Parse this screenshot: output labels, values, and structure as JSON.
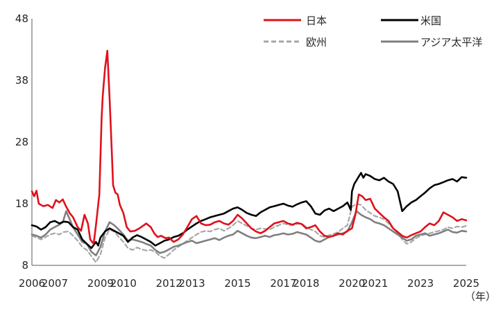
{
  "chart_data": {
    "type": "line",
    "title": "",
    "xlabel": "（年）",
    "ylabel": "",
    "ylim": [
      8,
      48
    ],
    "yticks": [
      8,
      18,
      28,
      38,
      48
    ],
    "xlim": [
      2006,
      2025
    ],
    "xticks": [
      2006,
      2007,
      2009,
      2010,
      2012,
      2013,
      2015,
      2017,
      2018,
      2020,
      2021,
      2023,
      2025
    ],
    "grid": false,
    "legend_position": "top-right",
    "series": [
      {
        "name": "日本",
        "color": "#e0101c",
        "dash": "solid",
        "x": [
          2006.0,
          2006.1,
          2006.2,
          2006.3,
          2006.5,
          2006.7,
          2006.9,
          2007.05,
          2007.2,
          2007.35,
          2007.5,
          2007.65,
          2007.8,
          2008.0,
          2008.15,
          2008.3,
          2008.45,
          2008.55,
          2008.7,
          2008.8,
          2008.9,
          2008.95,
          2009.05,
          2009.1,
          2009.2,
          2009.3,
          2009.4,
          2009.5,
          2009.55,
          2009.65,
          2009.75,
          2009.85,
          2010.0,
          2010.15,
          2010.3,
          2010.5,
          2010.7,
          2010.9,
          2011.0,
          2011.2,
          2011.35,
          2011.5,
          2011.65,
          2011.85,
          2012.0,
          2012.2,
          2012.4,
          2012.6,
          2012.8,
          2013.0,
          2013.2,
          2013.4,
          2013.6,
          2013.8,
          2014.0,
          2014.2,
          2014.4,
          2014.6,
          2014.8,
          2015.0,
          2015.2,
          2015.4,
          2015.6,
          2015.8,
          2016.0,
          2016.2,
          2016.4,
          2016.6,
          2016.8,
          2017.0,
          2017.2,
          2017.4,
          2017.6,
          2017.8,
          2018.0,
          2018.2,
          2018.4,
          2018.6,
          2018.8,
          2019.0,
          2019.2,
          2019.4,
          2019.6,
          2019.8,
          2020.0,
          2020.15,
          2020.3,
          2020.45,
          2020.6,
          2020.8,
          2021.0,
          2021.2,
          2021.4,
          2021.6,
          2021.8,
          2022.0,
          2022.2,
          2022.4,
          2022.6,
          2022.8,
          2023.0,
          2023.2,
          2023.4,
          2023.6,
          2023.8,
          2024.0,
          2024.2,
          2024.4,
          2024.6,
          2024.8,
          2025.0
        ],
        "values": [
          20.0,
          19.2,
          20.1,
          18.0,
          17.6,
          17.8,
          17.3,
          18.6,
          18.2,
          18.7,
          17.5,
          16.5,
          15.8,
          14.2,
          13.6,
          16.2,
          14.8,
          12.2,
          11.5,
          14.5,
          17.8,
          19.5,
          32.0,
          35.5,
          40.0,
          42.8,
          35.0,
          26.0,
          21.0,
          19.8,
          19.5,
          17.8,
          16.5,
          14.2,
          13.5,
          13.6,
          14.0,
          14.5,
          14.8,
          14.2,
          13.2,
          12.6,
          12.8,
          12.4,
          12.5,
          11.8,
          12.2,
          13.0,
          14.2,
          15.5,
          16.0,
          14.8,
          14.5,
          14.6,
          15.0,
          15.2,
          14.8,
          14.6,
          15.2,
          16.2,
          15.6,
          14.8,
          14.0,
          13.5,
          13.2,
          13.6,
          14.2,
          14.8,
          15.0,
          15.2,
          14.8,
          14.6,
          14.9,
          14.7,
          14.0,
          14.2,
          14.5,
          13.5,
          12.8,
          12.6,
          12.8,
          13.2,
          13.0,
          13.6,
          14.0,
          16.2,
          19.5,
          19.2,
          18.6,
          18.8,
          17.2,
          16.5,
          15.8,
          15.2,
          14.0,
          13.4,
          12.8,
          12.5,
          12.9,
          13.2,
          13.5,
          14.2,
          14.8,
          14.5,
          15.2,
          16.6,
          16.2,
          15.8,
          15.2,
          15.5,
          15.3
        ]
      },
      {
        "name": "米国",
        "color": "#000000",
        "dash": "solid",
        "x": [
          2006.0,
          2006.2,
          2006.4,
          2006.6,
          2006.8,
          2007.0,
          2007.2,
          2007.4,
          2007.6,
          2007.8,
          2008.0,
          2008.2,
          2008.4,
          2008.6,
          2008.8,
          2008.9,
          2009.0,
          2009.2,
          2009.4,
          2009.6,
          2009.8,
          2010.0,
          2010.2,
          2010.4,
          2010.6,
          2010.8,
          2011.0,
          2011.2,
          2011.4,
          2011.6,
          2011.8,
          2012.0,
          2012.2,
          2012.4,
          2012.6,
          2012.8,
          2013.0,
          2013.2,
          2013.4,
          2013.6,
          2013.8,
          2014.0,
          2014.2,
          2014.4,
          2014.6,
          2014.8,
          2015.0,
          2015.2,
          2015.4,
          2015.6,
          2015.8,
          2016.0,
          2016.2,
          2016.4,
          2016.6,
          2016.8,
          2017.0,
          2017.2,
          2017.4,
          2017.6,
          2017.8,
          2018.0,
          2018.2,
          2018.4,
          2018.6,
          2018.8,
          2019.0,
          2019.2,
          2019.4,
          2019.6,
          2019.8,
          2019.95,
          2020.0,
          2020.1,
          2020.2,
          2020.3,
          2020.4,
          2020.5,
          2020.6,
          2020.8,
          2021.0,
          2021.2,
          2021.4,
          2021.6,
          2021.8,
          2022.0,
          2022.2,
          2022.4,
          2022.6,
          2022.8,
          2023.0,
          2023.2,
          2023.4,
          2023.6,
          2023.8,
          2024.0,
          2024.2,
          2024.4,
          2024.6,
          2024.8,
          2025.0
        ],
        "values": [
          14.5,
          14.3,
          13.8,
          14.2,
          15.0,
          15.2,
          14.8,
          15.1,
          15.0,
          14.2,
          13.8,
          12.2,
          11.5,
          10.8,
          11.8,
          11.2,
          12.5,
          13.5,
          14.0,
          13.6,
          13.2,
          12.8,
          11.8,
          12.5,
          12.9,
          12.6,
          12.2,
          11.8,
          11.2,
          11.6,
          12.0,
          12.2,
          12.6,
          12.8,
          13.2,
          13.8,
          14.3,
          14.8,
          15.2,
          15.5,
          15.8,
          16.0,
          16.2,
          16.4,
          16.8,
          17.2,
          17.4,
          17.0,
          16.5,
          16.2,
          16.0,
          16.6,
          17.0,
          17.4,
          17.6,
          17.8,
          18.0,
          17.7,
          17.5,
          17.9,
          18.2,
          18.4,
          17.6,
          16.4,
          16.2,
          16.9,
          17.2,
          16.8,
          17.2,
          17.6,
          18.2,
          17.0,
          20.0,
          21.2,
          21.8,
          22.4,
          23.0,
          22.2,
          22.8,
          22.5,
          22.0,
          21.8,
          22.2,
          21.6,
          21.2,
          20.0,
          16.8,
          17.6,
          18.2,
          18.6,
          19.2,
          19.8,
          20.5,
          21.0,
          21.2,
          21.5,
          21.8,
          22.0,
          21.6,
          22.3,
          22.2
        ]
      },
      {
        "name": "欧州",
        "color": "#a6a6a6",
        "dash": "dashed",
        "x": [
          2006.0,
          2006.2,
          2006.4,
          2006.6,
          2006.8,
          2007.0,
          2007.2,
          2007.4,
          2007.6,
          2007.8,
          2008.0,
          2008.2,
          2008.4,
          2008.6,
          2008.8,
          2009.0,
          2009.2,
          2009.4,
          2009.6,
          2009.8,
          2010.0,
          2010.2,
          2010.4,
          2010.6,
          2010.8,
          2011.0,
          2011.2,
          2011.4,
          2011.6,
          2011.8,
          2012.0,
          2012.2,
          2012.4,
          2012.6,
          2012.8,
          2013.0,
          2013.2,
          2013.4,
          2013.6,
          2013.8,
          2014.0,
          2014.2,
          2014.4,
          2014.6,
          2014.8,
          2015.0,
          2015.2,
          2015.4,
          2015.6,
          2015.8,
          2016.0,
          2016.2,
          2016.4,
          2016.6,
          2016.8,
          2017.0,
          2017.2,
          2017.4,
          2017.6,
          2017.8,
          2018.0,
          2018.2,
          2018.4,
          2018.6,
          2018.8,
          2019.0,
          2019.2,
          2019.4,
          2019.6,
          2019.8,
          2020.0,
          2020.2,
          2020.4,
          2020.6,
          2020.8,
          2021.0,
          2021.2,
          2021.4,
          2021.6,
          2021.8,
          2022.0,
          2022.2,
          2022.4,
          2022.6,
          2022.8,
          2023.0,
          2023.2,
          2023.4,
          2023.6,
          2023.8,
          2024.0,
          2024.2,
          2024.4,
          2024.6,
          2024.8,
          2025.0
        ],
        "values": [
          12.8,
          12.5,
          12.2,
          12.6,
          13.0,
          13.2,
          13.0,
          13.4,
          13.5,
          12.8,
          12.0,
          11.0,
          10.5,
          9.5,
          8.5,
          9.8,
          12.5,
          13.8,
          13.5,
          12.6,
          11.8,
          10.8,
          10.5,
          10.9,
          10.6,
          10.4,
          10.5,
          10.2,
          9.5,
          9.2,
          9.8,
          10.5,
          11.0,
          11.5,
          12.0,
          12.5,
          13.0,
          13.4,
          13.6,
          13.5,
          13.8,
          14.0,
          13.6,
          14.0,
          14.5,
          15.2,
          14.8,
          14.4,
          14.0,
          13.8,
          14.0,
          13.9,
          13.8,
          14.2,
          14.5,
          14.8,
          14.6,
          14.5,
          14.7,
          14.8,
          14.2,
          13.8,
          13.5,
          12.8,
          12.6,
          12.9,
          13.1,
          13.4,
          14.0,
          14.5,
          17.5,
          18.0,
          17.8,
          17.0,
          16.5,
          16.0,
          15.8,
          15.5,
          14.8,
          14.0,
          13.2,
          12.2,
          11.5,
          11.8,
          12.4,
          12.8,
          13.0,
          13.2,
          13.4,
          13.6,
          13.8,
          14.2,
          14.0,
          14.3,
          14.2,
          14.4
        ]
      },
      {
        "name": "アジア太平洋",
        "color": "#7f7f7f",
        "dash": "solid",
        "x": [
          2006.0,
          2006.2,
          2006.4,
          2006.6,
          2006.8,
          2007.0,
          2007.2,
          2007.35,
          2007.5,
          2007.65,
          2007.8,
          2008.0,
          2008.2,
          2008.4,
          2008.6,
          2008.8,
          2009.0,
          2009.2,
          2009.4,
          2009.6,
          2009.8,
          2010.0,
          2010.2,
          2010.4,
          2010.6,
          2010.8,
          2011.0,
          2011.2,
          2011.4,
          2011.6,
          2011.8,
          2012.0,
          2012.2,
          2012.4,
          2012.6,
          2012.8,
          2013.0,
          2013.2,
          2013.4,
          2013.6,
          2013.8,
          2014.0,
          2014.2,
          2014.4,
          2014.6,
          2014.8,
          2015.0,
          2015.2,
          2015.4,
          2015.6,
          2015.8,
          2016.0,
          2016.2,
          2016.4,
          2016.6,
          2016.8,
          2017.0,
          2017.2,
          2017.4,
          2017.6,
          2017.8,
          2018.0,
          2018.2,
          2018.4,
          2018.6,
          2018.8,
          2019.0,
          2019.2,
          2019.4,
          2019.6,
          2019.8,
          2020.0,
          2020.2,
          2020.4,
          2020.6,
          2020.8,
          2021.0,
          2021.2,
          2021.4,
          2021.6,
          2021.8,
          2022.0,
          2022.2,
          2022.4,
          2022.6,
          2022.8,
          2023.0,
          2023.2,
          2023.4,
          2023.6,
          2023.8,
          2024.0,
          2024.2,
          2024.4,
          2024.6,
          2024.8,
          2025.0
        ],
        "values": [
          13.0,
          12.8,
          12.5,
          13.0,
          13.8,
          14.2,
          14.6,
          15.0,
          16.8,
          15.5,
          14.2,
          13.0,
          11.8,
          11.5,
          10.2,
          9.6,
          11.0,
          13.5,
          15.0,
          14.5,
          13.8,
          13.0,
          12.0,
          12.2,
          12.0,
          11.8,
          11.5,
          11.2,
          10.5,
          10.0,
          10.2,
          10.6,
          11.0,
          11.2,
          11.5,
          11.8,
          12.0,
          11.6,
          11.8,
          12.0,
          12.2,
          12.4,
          12.1,
          12.5,
          12.8,
          13.0,
          13.6,
          13.2,
          12.8,
          12.5,
          12.4,
          12.6,
          12.8,
          12.6,
          12.9,
          13.0,
          13.2,
          13.0,
          13.1,
          13.4,
          13.2,
          13.0,
          12.5,
          12.0,
          11.8,
          12.2,
          12.6,
          12.8,
          13.0,
          13.2,
          13.5,
          15.0,
          16.8,
          16.2,
          15.8,
          15.5,
          15.0,
          14.8,
          14.5,
          14.0,
          13.5,
          13.0,
          12.5,
          12.0,
          12.2,
          12.8,
          13.0,
          13.2,
          12.8,
          13.0,
          13.2,
          13.5,
          13.8,
          13.4,
          13.3,
          13.6,
          13.5
        ]
      }
    ]
  }
}
